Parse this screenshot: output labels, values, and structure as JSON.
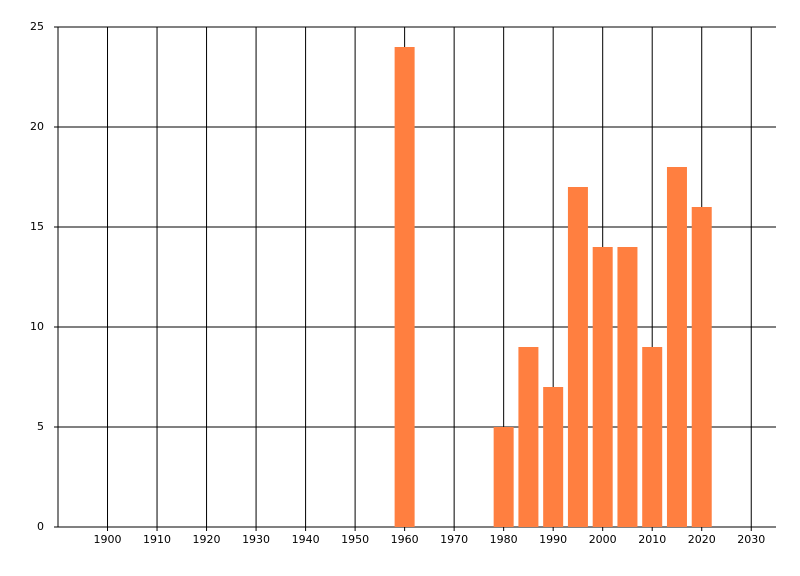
{
  "chart_data": {
    "type": "bar",
    "x": [
      1960,
      1980,
      1985,
      1990,
      1995,
      2000,
      2005,
      2010,
      2015,
      2020
    ],
    "values": [
      24,
      5,
      9,
      7,
      17,
      14,
      14,
      9,
      18,
      16
    ],
    "color": "#ff7f40",
    "xlim": [
      1890,
      2035
    ],
    "xticks": [
      1900,
      1910,
      1920,
      1930,
      1940,
      1950,
      1960,
      1970,
      1980,
      1990,
      2000,
      2010,
      2020,
      2030
    ],
    "ylim": [
      0,
      25
    ],
    "yticks": [
      0,
      5,
      10,
      15,
      20,
      25
    ],
    "grid": true
  }
}
